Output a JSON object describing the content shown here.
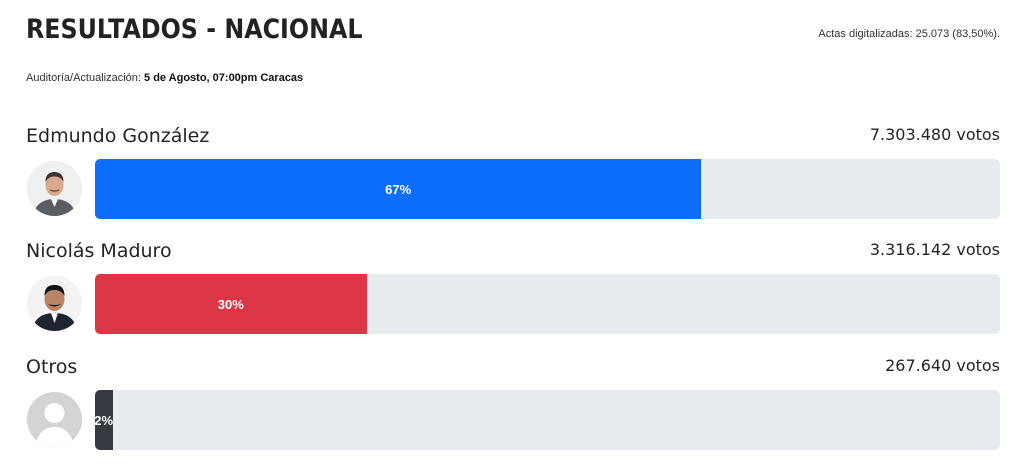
{
  "header": {
    "title": "RESULTADOS - NACIONAL",
    "actas": "Actas digitalizadas: 25.073 (83,50%).",
    "update_label": "Auditoría/Actualización:",
    "update_value": "5 de Agosto, 07:00pm Caracas"
  },
  "candidates": [
    {
      "name": "Edmundo González",
      "votes": "7.303.480 votos",
      "percent_label": "67%",
      "percent": 67,
      "color": "#0d6efd"
    },
    {
      "name": "Nicolás Maduro",
      "votes": "3.316.142 votos",
      "percent_label": "30%",
      "percent": 30,
      "color": "#dc3545"
    },
    {
      "name": "Otros",
      "votes": "267.640 votos",
      "percent_label": "2%",
      "percent": 2,
      "color": "#343a40"
    }
  ]
}
